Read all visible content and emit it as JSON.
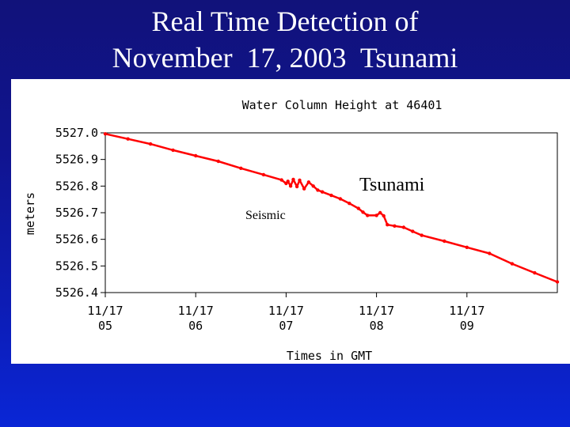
{
  "slide": {
    "title_line1": "Real Time Detection of",
    "title_line2": "November  17, 2003  Tsunami"
  },
  "colors": {
    "background_top": "#11127a",
    "background_bottom": "#0a26d6",
    "data_series": "#ff0000"
  },
  "chart_data": {
    "type": "scatter",
    "title": "Water Column Height at 46401",
    "xlabel": "Times in GMT",
    "ylabel": "meters",
    "xlim": [
      5.0,
      10.0
    ],
    "ylim": [
      5526.4,
      5527.0
    ],
    "grid": false,
    "x_ticks": [
      {
        "value": 5,
        "line1": "11/17",
        "line2": "05"
      },
      {
        "value": 6,
        "line1": "11/17",
        "line2": "06"
      },
      {
        "value": 7,
        "line1": "11/17",
        "line2": "07"
      },
      {
        "value": 8,
        "line1": "11/17",
        "line2": "08"
      },
      {
        "value": 9,
        "line1": "11/17",
        "line2": "09"
      }
    ],
    "y_ticks": [
      "5527.0",
      "5526.9",
      "5526.8",
      "5526.7",
      "5526.6",
      "5526.5",
      "5526.4"
    ],
    "y_tick_values": [
      5527.0,
      5526.9,
      5526.8,
      5526.7,
      5526.6,
      5526.5,
      5526.4
    ],
    "annotations": {
      "tsunami": "Tsunami",
      "seismic": "Seismic"
    },
    "series": [
      {
        "color": "#ff0000",
        "points": [
          [
            5.0,
            5526.996
          ],
          [
            5.25,
            5526.977
          ],
          [
            5.5,
            5526.958
          ],
          [
            5.75,
            5526.935
          ],
          [
            6.0,
            5526.914
          ],
          [
            6.25,
            5526.893
          ],
          [
            6.5,
            5526.867
          ],
          [
            6.75,
            5526.843
          ],
          [
            6.95,
            5526.823
          ],
          [
            7.0,
            5526.81
          ],
          [
            7.02,
            5526.818
          ],
          [
            7.05,
            5526.8
          ],
          [
            7.08,
            5526.825
          ],
          [
            7.12,
            5526.798
          ],
          [
            7.15,
            5526.822
          ],
          [
            7.2,
            5526.79
          ],
          [
            7.25,
            5526.815
          ],
          [
            7.3,
            5526.8
          ],
          [
            7.35,
            5526.785
          ],
          [
            7.4,
            5526.778
          ],
          [
            7.5,
            5526.765
          ],
          [
            7.6,
            5526.752
          ],
          [
            7.7,
            5526.735
          ],
          [
            7.8,
            5526.716
          ],
          [
            7.85,
            5526.702
          ],
          [
            7.9,
            5526.69
          ],
          [
            8.0,
            5526.69
          ],
          [
            8.04,
            5526.7
          ],
          [
            8.08,
            5526.688
          ],
          [
            8.12,
            5526.655
          ],
          [
            8.2,
            5526.65
          ],
          [
            8.3,
            5526.645
          ],
          [
            8.4,
            5526.63
          ],
          [
            8.5,
            5526.615
          ],
          [
            8.75,
            5526.593
          ],
          [
            9.0,
            5526.57
          ],
          [
            9.25,
            5526.547
          ],
          [
            9.5,
            5526.508
          ],
          [
            9.75,
            5526.474
          ],
          [
            10.0,
            5526.44
          ]
        ]
      }
    ]
  }
}
